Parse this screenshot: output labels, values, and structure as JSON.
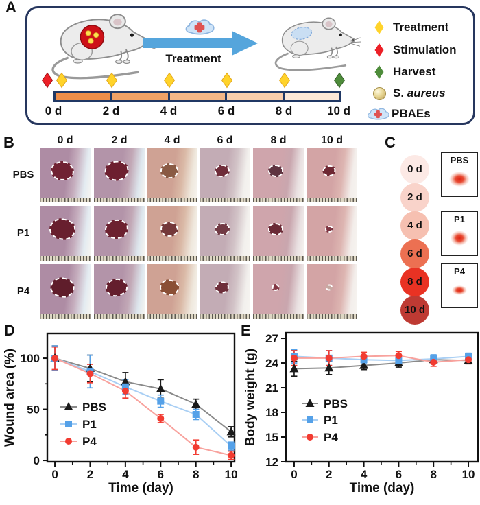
{
  "panels": {
    "a": {
      "label": "A",
      "arrow_label": "Treatment",
      "legend": [
        {
          "name": "treatment",
          "label": "Treatment",
          "color": "#FFD32A",
          "stroke": "#E3A81C"
        },
        {
          "name": "stimulation",
          "label": "Stimulation",
          "color": "#EC2027",
          "stroke": "#A50F14"
        },
        {
          "name": "harvest",
          "label": "Harvest",
          "color": "#4E8C3B",
          "stroke": "#35602A"
        },
        {
          "name": "s-aureus",
          "prefix": "S.",
          "italic": "aureus",
          "color": "#E8D795"
        },
        {
          "name": "pbaes",
          "label": "PBAEs",
          "color": "#CFE4F8"
        }
      ],
      "timeline": {
        "day_labels": [
          "0 d",
          "2 d",
          "4 d",
          "6 d",
          "8 d",
          "10 d"
        ],
        "segment_colors": [
          "#EE8E49",
          "#F1A266",
          "#F5B787",
          "#F9CEAC",
          "#FCE8D7"
        ],
        "markers": [
          {
            "type": "stimulation",
            "day_index": 0
          },
          {
            "type": "treatment",
            "day_index": 0
          },
          {
            "type": "treatment",
            "day_index": 1
          },
          {
            "type": "treatment",
            "day_index": 2
          },
          {
            "type": "treatment",
            "day_index": 3
          },
          {
            "type": "treatment",
            "day_index": 4
          },
          {
            "type": "harvest",
            "day_index": 5
          }
        ]
      }
    },
    "b": {
      "label": "B",
      "col_headers": [
        "0 d",
        "2 d",
        "4 d",
        "6 d",
        "8 d",
        "10 d"
      ],
      "photo_skins": [
        [
          "#AE8CA4",
          "#C6AEBE",
          "#E3EBF1"
        ],
        [
          "#B394A9",
          "#C2A8B6",
          "#DEE7EE"
        ],
        [
          "#CFA294",
          "#DAB9A6",
          "#EFE8DD"
        ],
        [
          "#C3ACB5",
          "#D2C3C7",
          "#F2F0ED"
        ],
        [
          "#CFA5AC",
          "#C9A6AE",
          "#E9E0E1"
        ],
        [
          "#D3A4A5",
          "#DDB5B1",
          "#F3EEEB"
        ]
      ],
      "rows": [
        {
          "label": "PBS",
          "wounds": [
            {
              "size": 0.4,
              "color": "#702233"
            },
            {
              "size": 0.42,
              "color": "#6d1f2f"
            },
            {
              "size": 0.3,
              "color": "#8a5a44"
            },
            {
              "size": 0.24,
              "color": "#6f2d3a"
            },
            {
              "size": 0.24,
              "color": "#5f3340"
            },
            {
              "size": 0.2,
              "color": "#6e2833"
            }
          ]
        },
        {
          "label": "P1",
          "wounds": [
            {
              "size": 0.46,
              "color": "#681f2e"
            },
            {
              "size": 0.4,
              "color": "#6c2130"
            },
            {
              "size": 0.3,
              "color": "#74383a"
            },
            {
              "size": 0.24,
              "color": "#713a44"
            },
            {
              "size": 0.24,
              "color": "#6a2a36"
            },
            {
              "size": 0.11,
              "color": "#7c3340"
            }
          ]
        },
        {
          "label": "P4",
          "wounds": [
            {
              "size": 0.42,
              "color": "#5f1d2b"
            },
            {
              "size": 0.38,
              "color": "#641e2d"
            },
            {
              "size": 0.32,
              "color": "#8a4f35"
            },
            {
              "size": 0.22,
              "color": "#6d2e3a"
            },
            {
              "size": 0.09,
              "color": "#833744"
            },
            {
              "size": 0.08,
              "color": "#c7a9a2"
            }
          ]
        }
      ]
    },
    "c": {
      "label": "C",
      "days": [
        {
          "label": "0 d",
          "color": "#FCE9E5"
        },
        {
          "label": "2 d",
          "color": "#F9D3CA"
        },
        {
          "label": "4 d",
          "color": "#F6C0B1"
        },
        {
          "label": "6 d",
          "color": "#EC7052"
        },
        {
          "label": "8 d",
          "color": "#E93223"
        },
        {
          "label": "10 d",
          "color": "#BE3A33"
        }
      ],
      "groups": [
        {
          "label": "PBS",
          "blob_w": 30,
          "blob_h": 22
        },
        {
          "label": "P1",
          "blob_w": 26,
          "blob_h": 22
        },
        {
          "label": "P4",
          "blob_w": 22,
          "blob_h": 14
        }
      ]
    },
    "d": {
      "label": "D"
    },
    "e": {
      "label": "E"
    }
  },
  "chart_data": [
    {
      "id": "wound-area",
      "panel_label": "D",
      "type": "line",
      "x": [
        0,
        2,
        4,
        6,
        8,
        10
      ],
      "xlabel": "Time (day)",
      "ylabel": "Wound area (%)",
      "xticks": [
        0,
        2,
        4,
        6,
        8,
        10
      ],
      "yticks": [
        0,
        50,
        100
      ],
      "ylim": [
        0,
        125
      ],
      "legend_position": "lower-left",
      "series": [
        {
          "name": "PBS",
          "marker": "triangle",
          "color": "#1a1a1a",
          "line_color": "#8a8a8a",
          "values": [
            100,
            90,
            77,
            70,
            55,
            28
          ],
          "errors": [
            12,
            13,
            9,
            9,
            5,
            5
          ]
        },
        {
          "name": "P1",
          "marker": "square",
          "color": "#55A1E8",
          "line_color": "#A9CFF4",
          "values": [
            100,
            87,
            72,
            58,
            45,
            14
          ],
          "errors": [
            12,
            16,
            7,
            6,
            5,
            4
          ]
        },
        {
          "name": "P4",
          "marker": "circle",
          "color": "#F23B31",
          "line_color": "#F8A29D",
          "values": [
            100,
            85,
            68,
            41,
            13,
            5
          ],
          "errors": [
            11,
            9,
            7,
            4,
            7,
            4
          ]
        }
      ]
    },
    {
      "id": "body-weight",
      "panel_label": "E",
      "type": "line",
      "x": [
        0,
        2,
        4,
        6,
        8,
        10
      ],
      "xlabel": "Time (day)",
      "ylabel": "Body weight (g)",
      "xticks": [
        0,
        2,
        4,
        6,
        8,
        10
      ],
      "yticks": [
        12,
        15,
        18,
        21,
        24,
        27
      ],
      "ylim": [
        12,
        27.7
      ],
      "legend_position": "center-left",
      "series": [
        {
          "name": "PBS",
          "marker": "triangle",
          "color": "#1a1a1a",
          "line_color": "#8a8a8a",
          "values": [
            23.3,
            23.4,
            23.7,
            24.0,
            24.4,
            24.3
          ],
          "errors": [
            0.9,
            0.8,
            0.5,
            0.5,
            0.4,
            0.4
          ]
        },
        {
          "name": "P1",
          "marker": "square",
          "color": "#55A1E8",
          "line_color": "#A9CFF4",
          "values": [
            24.8,
            24.6,
            24.4,
            24.3,
            24.5,
            24.8
          ],
          "errors": [
            0.8,
            0.9,
            0.5,
            0.4,
            0.5,
            0.4
          ]
        },
        {
          "name": "P4",
          "marker": "circle",
          "color": "#F23B31",
          "line_color": "#F8A29D",
          "values": [
            24.6,
            24.6,
            24.8,
            24.9,
            24.1,
            24.4
          ],
          "errors": [
            0.9,
            0.9,
            0.5,
            0.5,
            0.5,
            0.5
          ]
        }
      ]
    }
  ]
}
